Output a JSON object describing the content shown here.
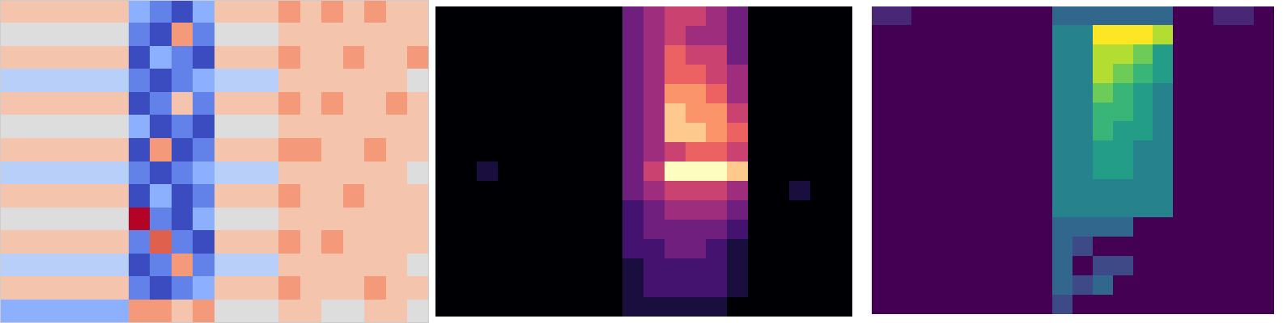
{
  "chart_data": [
    {
      "type": "heatmap",
      "color": "coolwarm",
      "tick_labels": false,
      "cells": [
        [
          6,
          6,
          6,
          6,
          6,
          6,
          3,
          2,
          1,
          3,
          6,
          6,
          6,
          7,
          6,
          7,
          6,
          7,
          6,
          6
        ],
        [
          5,
          5,
          5,
          5,
          5,
          5,
          2,
          1,
          7,
          2,
          5,
          5,
          5,
          6,
          6,
          6,
          6,
          6,
          6,
          6
        ],
        [
          6,
          6,
          6,
          6,
          6,
          6,
          1,
          3,
          2,
          1,
          6,
          6,
          6,
          7,
          6,
          6,
          7,
          6,
          6,
          7
        ],
        [
          4,
          4,
          4,
          4,
          4,
          4,
          2,
          1,
          2,
          3,
          4,
          4,
          4,
          6,
          6,
          6,
          6,
          6,
          6,
          5
        ],
        [
          6,
          6,
          6,
          6,
          6,
          6,
          1,
          2,
          6,
          2,
          6,
          6,
          6,
          7,
          6,
          7,
          6,
          6,
          7,
          6
        ],
        [
          5,
          5,
          5,
          5,
          5,
          5,
          3,
          1,
          2,
          1,
          5,
          5,
          5,
          6,
          6,
          6,
          6,
          6,
          6,
          6
        ],
        [
          6,
          6,
          6,
          6,
          6,
          6,
          1,
          7,
          1,
          2,
          6,
          6,
          6,
          7,
          7,
          6,
          6,
          7,
          6,
          6
        ],
        [
          4,
          4,
          4,
          4,
          4,
          4,
          2,
          1,
          2,
          3,
          4,
          4,
          4,
          6,
          6,
          6,
          6,
          6,
          6,
          5
        ],
        [
          6,
          6,
          6,
          6,
          6,
          6,
          1,
          3,
          1,
          2,
          6,
          6,
          6,
          7,
          6,
          6,
          7,
          6,
          6,
          6
        ],
        [
          5,
          5,
          5,
          5,
          5,
          5,
          9,
          2,
          1,
          3,
          5,
          5,
          5,
          6,
          6,
          6,
          6,
          6,
          6,
          6
        ],
        [
          6,
          6,
          6,
          6,
          6,
          6,
          2,
          8,
          2,
          1,
          6,
          6,
          6,
          7,
          6,
          7,
          6,
          6,
          6,
          6
        ],
        [
          4,
          4,
          4,
          4,
          4,
          4,
          1,
          2,
          7,
          2,
          4,
          4,
          4,
          6,
          6,
          6,
          6,
          6,
          6,
          5
        ],
        [
          6,
          6,
          6,
          6,
          6,
          6,
          2,
          1,
          2,
          3,
          6,
          6,
          6,
          7,
          6,
          6,
          6,
          7,
          6,
          6
        ],
        [
          3,
          3,
          3,
          3,
          3,
          3,
          7,
          7,
          6,
          7,
          5,
          5,
          5,
          6,
          6,
          5,
          5,
          6,
          6,
          5
        ]
      ]
    },
    {
      "type": "heatmap",
      "color": "magma",
      "tick_labels": false,
      "cells": [
        [
          0,
          0,
          0,
          0,
          0,
          0,
          0,
          0,
          0,
          3,
          4,
          5,
          5,
          4,
          3,
          0,
          0,
          0,
          0,
          0
        ],
        [
          0,
          0,
          0,
          0,
          0,
          0,
          0,
          0,
          0,
          3,
          4,
          5,
          4,
          4,
          3,
          0,
          0,
          0,
          0,
          0
        ],
        [
          0,
          0,
          0,
          0,
          0,
          0,
          0,
          0,
          0,
          3,
          4,
          6,
          5,
          5,
          3,
          0,
          0,
          0,
          0,
          0
        ],
        [
          0,
          0,
          0,
          0,
          0,
          0,
          0,
          0,
          0,
          3,
          4,
          6,
          6,
          5,
          4,
          0,
          0,
          0,
          0,
          0
        ],
        [
          0,
          0,
          0,
          0,
          0,
          0,
          0,
          0,
          0,
          3,
          4,
          7,
          7,
          6,
          4,
          0,
          0,
          0,
          0,
          0
        ],
        [
          0,
          0,
          0,
          0,
          0,
          0,
          0,
          0,
          0,
          3,
          4,
          8,
          7,
          7,
          5,
          0,
          0,
          0,
          0,
          0
        ],
        [
          0,
          0,
          0,
          0,
          0,
          0,
          0,
          0,
          0,
          3,
          4,
          8,
          8,
          7,
          6,
          0,
          0,
          0,
          0,
          0
        ],
        [
          0,
          0,
          0,
          0,
          0,
          0,
          0,
          0,
          0,
          3,
          4,
          5,
          6,
          6,
          5,
          0,
          0,
          0,
          0,
          0
        ],
        [
          0,
          0,
          1,
          0,
          0,
          0,
          0,
          0,
          0,
          3,
          5,
          9,
          9,
          9,
          8,
          0,
          0,
          0,
          0,
          0
        ],
        [
          0,
          0,
          0,
          0,
          0,
          0,
          0,
          0,
          0,
          3,
          4,
          5,
          5,
          5,
          4,
          0,
          0,
          1,
          0,
          0
        ],
        [
          0,
          0,
          0,
          0,
          0,
          0,
          0,
          0,
          0,
          2,
          3,
          4,
          4,
          4,
          3,
          0,
          0,
          0,
          0,
          0
        ],
        [
          0,
          0,
          0,
          0,
          0,
          0,
          0,
          0,
          0,
          2,
          3,
          3,
          3,
          3,
          2,
          0,
          0,
          0,
          0,
          0
        ],
        [
          0,
          0,
          0,
          0,
          0,
          0,
          0,
          0,
          0,
          2,
          2,
          3,
          3,
          2,
          1,
          0,
          0,
          0,
          0,
          0
        ],
        [
          0,
          0,
          0,
          0,
          0,
          0,
          0,
          0,
          0,
          1,
          2,
          2,
          2,
          2,
          1,
          0,
          0,
          0,
          0,
          0
        ],
        [
          0,
          0,
          0,
          0,
          0,
          0,
          0,
          0,
          0,
          1,
          2,
          2,
          2,
          2,
          1,
          0,
          0,
          0,
          0,
          0
        ],
        [
          0,
          0,
          0,
          0,
          0,
          0,
          0,
          0,
          0,
          1,
          1,
          1,
          1,
          1,
          0,
          0,
          0,
          0,
          0,
          0
        ]
      ]
    },
    {
      "type": "heatmap",
      "color": "viridis",
      "tick_labels": false,
      "cells": [
        [
          1,
          1,
          0,
          0,
          0,
          0,
          0,
          0,
          0,
          3,
          3,
          3,
          3,
          3,
          3,
          0,
          0,
          1,
          1,
          0
        ],
        [
          0,
          0,
          0,
          0,
          0,
          0,
          0,
          0,
          0,
          4,
          4,
          9,
          9,
          9,
          8,
          0,
          0,
          0,
          0,
          0
        ],
        [
          0,
          0,
          0,
          0,
          0,
          0,
          0,
          0,
          0,
          4,
          4,
          8,
          8,
          7,
          5,
          0,
          0,
          0,
          0,
          0
        ],
        [
          0,
          0,
          0,
          0,
          0,
          0,
          0,
          0,
          0,
          4,
          4,
          8,
          7,
          6,
          5,
          0,
          0,
          0,
          0,
          0
        ],
        [
          0,
          0,
          0,
          0,
          0,
          0,
          0,
          0,
          0,
          4,
          4,
          7,
          6,
          5,
          4,
          0,
          0,
          0,
          0,
          0
        ],
        [
          0,
          0,
          0,
          0,
          0,
          0,
          0,
          0,
          0,
          4,
          4,
          6,
          6,
          5,
          4,
          0,
          0,
          0,
          0,
          0
        ],
        [
          0,
          0,
          0,
          0,
          0,
          0,
          0,
          0,
          0,
          4,
          4,
          6,
          5,
          5,
          4,
          0,
          0,
          0,
          0,
          0
        ],
        [
          0,
          0,
          0,
          0,
          0,
          0,
          0,
          0,
          0,
          4,
          4,
          5,
          5,
          4,
          4,
          0,
          0,
          0,
          0,
          0
        ],
        [
          0,
          0,
          0,
          0,
          0,
          0,
          0,
          0,
          0,
          4,
          4,
          5,
          5,
          4,
          4,
          0,
          0,
          0,
          0,
          0
        ],
        [
          0,
          0,
          0,
          0,
          0,
          0,
          0,
          0,
          0,
          4,
          4,
          4,
          4,
          4,
          4,
          0,
          0,
          0,
          0,
          0
        ],
        [
          0,
          0,
          0,
          0,
          0,
          0,
          0,
          0,
          0,
          4,
          4,
          4,
          4,
          4,
          4,
          0,
          0,
          0,
          0,
          0
        ],
        [
          0,
          0,
          0,
          0,
          0,
          0,
          0,
          0,
          0,
          3,
          3,
          3,
          3,
          0,
          0,
          0,
          0,
          0,
          0,
          0
        ],
        [
          0,
          0,
          0,
          0,
          0,
          0,
          0,
          0,
          0,
          3,
          2,
          0,
          0,
          0,
          0,
          0,
          0,
          0,
          0,
          0
        ],
        [
          0,
          0,
          0,
          0,
          0,
          0,
          0,
          0,
          0,
          3,
          0,
          2,
          2,
          0,
          0,
          0,
          0,
          0,
          0,
          0
        ],
        [
          0,
          0,
          0,
          0,
          0,
          0,
          0,
          0,
          0,
          3,
          2,
          3,
          0,
          0,
          0,
          0,
          0,
          0,
          0,
          0
        ],
        [
          0,
          0,
          0,
          0,
          0,
          0,
          0,
          0,
          0,
          2,
          0,
          0,
          0,
          0,
          0,
          0,
          0,
          0,
          0,
          0
        ]
      ]
    }
  ]
}
